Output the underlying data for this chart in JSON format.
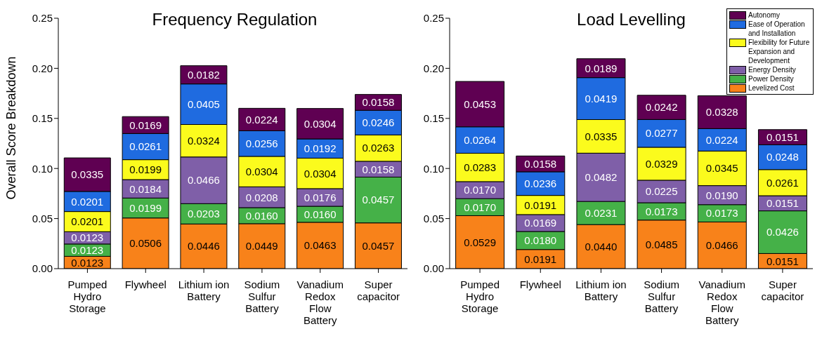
{
  "chart_data": [
    {
      "type": "bar",
      "title": "Frequency Regulation",
      "ylabel": "Overall Score Breakdown",
      "stacked": true,
      "legend": false,
      "categories": [
        "Pumped\nHydro\nStorage",
        "Flywheel",
        "Lithium ion\nBattery",
        "Sodium\nSulfur\nBattery",
        "Vanadium\nRedox\nFlow\nBattery",
        "Super\ncapacitor"
      ],
      "ylim": [
        0,
        0.25
      ],
      "yticks": [
        {
          "value": 0,
          "label": "0.00"
        },
        {
          "value": 0.05,
          "label": "0.05"
        },
        {
          "value": 0.1,
          "label": "0.10"
        },
        {
          "value": 0.15,
          "label": "0.15"
        },
        {
          "value": 0.2,
          "label": "0.20"
        },
        {
          "value": 0.25,
          "label": "0.25"
        }
      ],
      "series": [
        {
          "color": "#f8821a",
          "values": [
            0.0123,
            0.0506,
            0.0446,
            0.0449,
            0.0463,
            0.0457
          ],
          "value_labels": [
            "0.0123",
            "0.0506",
            "0.0446",
            "0.0449",
            "0.0463",
            "0.0457"
          ]
        },
        {
          "color": "#45b148",
          "values": [
            0.0123,
            0.0199,
            0.0203,
            0.016,
            0.016,
            0.0457
          ],
          "value_labels": [
            "0.0123",
            "0.0199",
            "0.0203",
            "0.0160",
            "0.0160",
            "0.0457"
          ]
        },
        {
          "color": "#7f5fa8",
          "values": [
            0.0123,
            0.0184,
            0.0466,
            0.0208,
            0.0176,
            0.0158
          ],
          "value_labels": [
            "0.0123",
            "0.0184",
            "0.0466",
            "0.0208",
            "0.0176",
            "0.0158"
          ]
        },
        {
          "color": "#fbfb1d",
          "values": [
            0.0201,
            0.0199,
            0.0324,
            0.0304,
            0.0304,
            0.0263
          ],
          "value_labels": [
            "0.0201",
            "0.0199",
            "0.0324",
            "0.0304",
            "0.0304",
            "0.0263"
          ]
        },
        {
          "color": "#1f6be0",
          "values": [
            0.0201,
            0.0261,
            0.0405,
            0.0256,
            0.0192,
            0.0246
          ],
          "value_labels": [
            "0.0201",
            "0.0261",
            "0.0405",
            "0.0256",
            "0.0192",
            "0.0246"
          ]
        },
        {
          "color": "#5f0052",
          "values": [
            0.0335,
            0.0169,
            0.0182,
            0.0224,
            0.0304,
            0.0158
          ],
          "value_labels": [
            "0.0335",
            "0.0169",
            "0.0182",
            "0.0224",
            "0.0304",
            "0.0158"
          ]
        }
      ]
    },
    {
      "type": "bar",
      "title": "Load Levelling",
      "stacked": true,
      "legend": "top right",
      "categories": [
        "Pumped\nHydro\nStorage",
        "Flywheel",
        "Lithium ion\nBattery",
        "Sodium\nSulfur\nBattery",
        "Vanadium\nRedox\nFlow\nBattery",
        "Super\ncapacitor"
      ],
      "ylim": [
        0,
        0.25
      ],
      "yticks": [
        {
          "value": 0,
          "label": "0.00"
        },
        {
          "value": 0.05,
          "label": "0.05"
        },
        {
          "value": 0.1,
          "label": "0.10"
        },
        {
          "value": 0.15,
          "label": "0.15"
        },
        {
          "value": 0.2,
          "label": "0.20"
        },
        {
          "value": 0.25,
          "label": "0.25"
        }
      ],
      "series": [
        {
          "name": "Levelized Cost",
          "color": "#f8821a",
          "values": [
            0.0529,
            0.0191,
            0.044,
            0.0485,
            0.0466,
            0.0151
          ],
          "value_labels": [
            "0.0529",
            "0.0191",
            "0.0440",
            "0.0485",
            "0.0466",
            "0.0151"
          ]
        },
        {
          "name": "Power Density",
          "color": "#45b148",
          "values": [
            0.017,
            0.018,
            0.0231,
            0.0173,
            0.0173,
            0.0426
          ],
          "value_labels": [
            "0.0170",
            "0.0180",
            "0.0231",
            "0.0173",
            "0.0173",
            "0.0426"
          ]
        },
        {
          "name": "Energy Density",
          "color": "#7f5fa8",
          "values": [
            0.017,
            0.0169,
            0.0482,
            0.0225,
            0.019,
            0.0151
          ],
          "value_labels": [
            "0.0170",
            "0.0169",
            "0.0482",
            "0.0225",
            "0.0190",
            "0.0151"
          ]
        },
        {
          "name": "Flexibility for Future Expansion and Development",
          "color": "#fbfb1d",
          "values": [
            0.0283,
            0.0191,
            0.0335,
            0.0329,
            0.0345,
            0.0261
          ],
          "value_labels": [
            "0.0283",
            "0.0191",
            "0.0335",
            "0.0329",
            "0.0345",
            "0.0261"
          ]
        },
        {
          "name": "Ease of Operation and Installation",
          "color": "#1f6be0",
          "values": [
            0.0264,
            0.0236,
            0.0419,
            0.0277,
            0.0224,
            0.0248
          ],
          "value_labels": [
            "0.0264",
            "0.0236",
            "0.0419",
            "0.0277",
            "0.0224",
            "0.0248"
          ]
        },
        {
          "name": "Autonomy",
          "color": "#5f0052",
          "values": [
            0.0453,
            0.0158,
            0.0189,
            0.0242,
            0.0328,
            0.0151
          ],
          "value_labels": [
            "0.0453",
            "0.0158",
            "0.0189",
            "0.0242",
            "0.0328",
            "0.0151"
          ]
        }
      ]
    }
  ]
}
